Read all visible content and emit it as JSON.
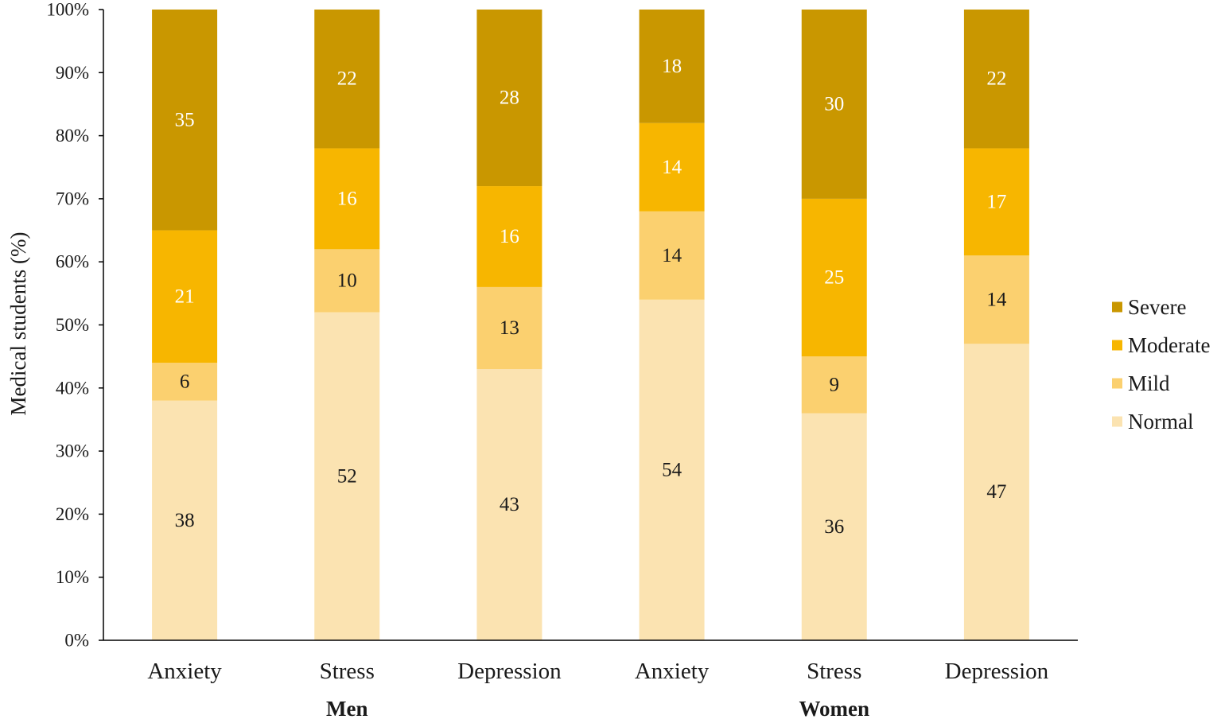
{
  "chart_data": {
    "type": "bar",
    "stacked": true,
    "normalized_percent": true,
    "categories": [
      "Anxiety",
      "Stress",
      "Depression",
      "Anxiety",
      "Stress",
      "Depression"
    ],
    "groups": [
      {
        "label": "Men",
        "category_indices": [
          0,
          1,
          2
        ]
      },
      {
        "label": "Women",
        "category_indices": [
          3,
          4,
          5
        ]
      }
    ],
    "series": [
      {
        "name": "Normal",
        "color": "#fbe3b1",
        "label_color": "#1a1a1a",
        "values": [
          38,
          52,
          43,
          54,
          36,
          47
        ]
      },
      {
        "name": "Mild",
        "color": "#fbd06f",
        "label_color": "#1a1a1a",
        "values": [
          6,
          10,
          13,
          14,
          9,
          14
        ]
      },
      {
        "name": "Moderate",
        "color": "#f7b600",
        "label_color": "#ffffff",
        "values": [
          21,
          16,
          16,
          14,
          25,
          17
        ]
      },
      {
        "name": "Severe",
        "color": "#c99700",
        "label_color": "#ffffff",
        "values": [
          35,
          22,
          28,
          18,
          30,
          22
        ]
      }
    ],
    "ylabel": "Medical students (%)",
    "xlabel": "",
    "ylim": [
      0,
      100
    ],
    "yticks": [
      "0%",
      "10%",
      "20%",
      "30%",
      "40%",
      "50%",
      "60%",
      "70%",
      "80%",
      "90%",
      "100%"
    ],
    "legend": {
      "placement": "right",
      "order": [
        "Severe",
        "Moderate",
        "Mild",
        "Normal"
      ]
    },
    "grid": false
  }
}
